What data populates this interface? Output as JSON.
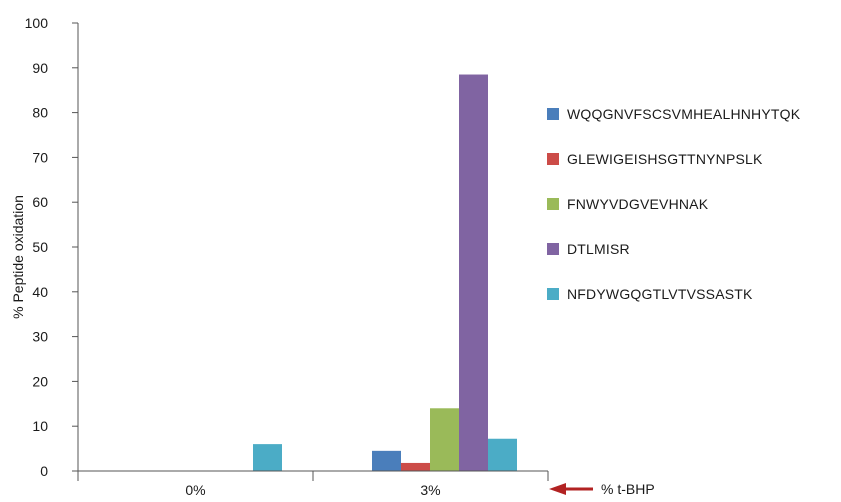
{
  "chart_data": {
    "type": "bar",
    "categories": [
      "0%",
      "3%"
    ],
    "series": [
      {
        "name": "WQQGNVFSCSVMHEALHNHYTQK",
        "color": "#4a7ebb",
        "values": [
          0,
          4.5
        ]
      },
      {
        "name": "GLEWIGEISHSGTTNYNPSLK",
        "color": "#cc4c48",
        "values": [
          0,
          1.8
        ]
      },
      {
        "name": "FNWYVDGVEVHNAK",
        "color": "#9aba59",
        "values": [
          0,
          14
        ]
      },
      {
        "name": "DTLMISR",
        "color": "#8064a2",
        "values": [
          0,
          88.5
        ]
      },
      {
        "name": "NFDYWGQGTLVTVSSASTK",
        "color": "#4bacc6",
        "values": [
          6,
          7.2
        ]
      }
    ],
    "ylabel": "% Peptide oxidation",
    "xlabel": "% t-BHP",
    "ylim": [
      0,
      100
    ],
    "yticks": [
      0,
      10,
      20,
      30,
      40,
      50,
      60,
      70,
      80,
      90,
      100
    ],
    "grid": false,
    "legend_position": "right",
    "annotation": {
      "type": "arrow",
      "color": "#b22222",
      "points_to": "x-axis-end"
    }
  }
}
